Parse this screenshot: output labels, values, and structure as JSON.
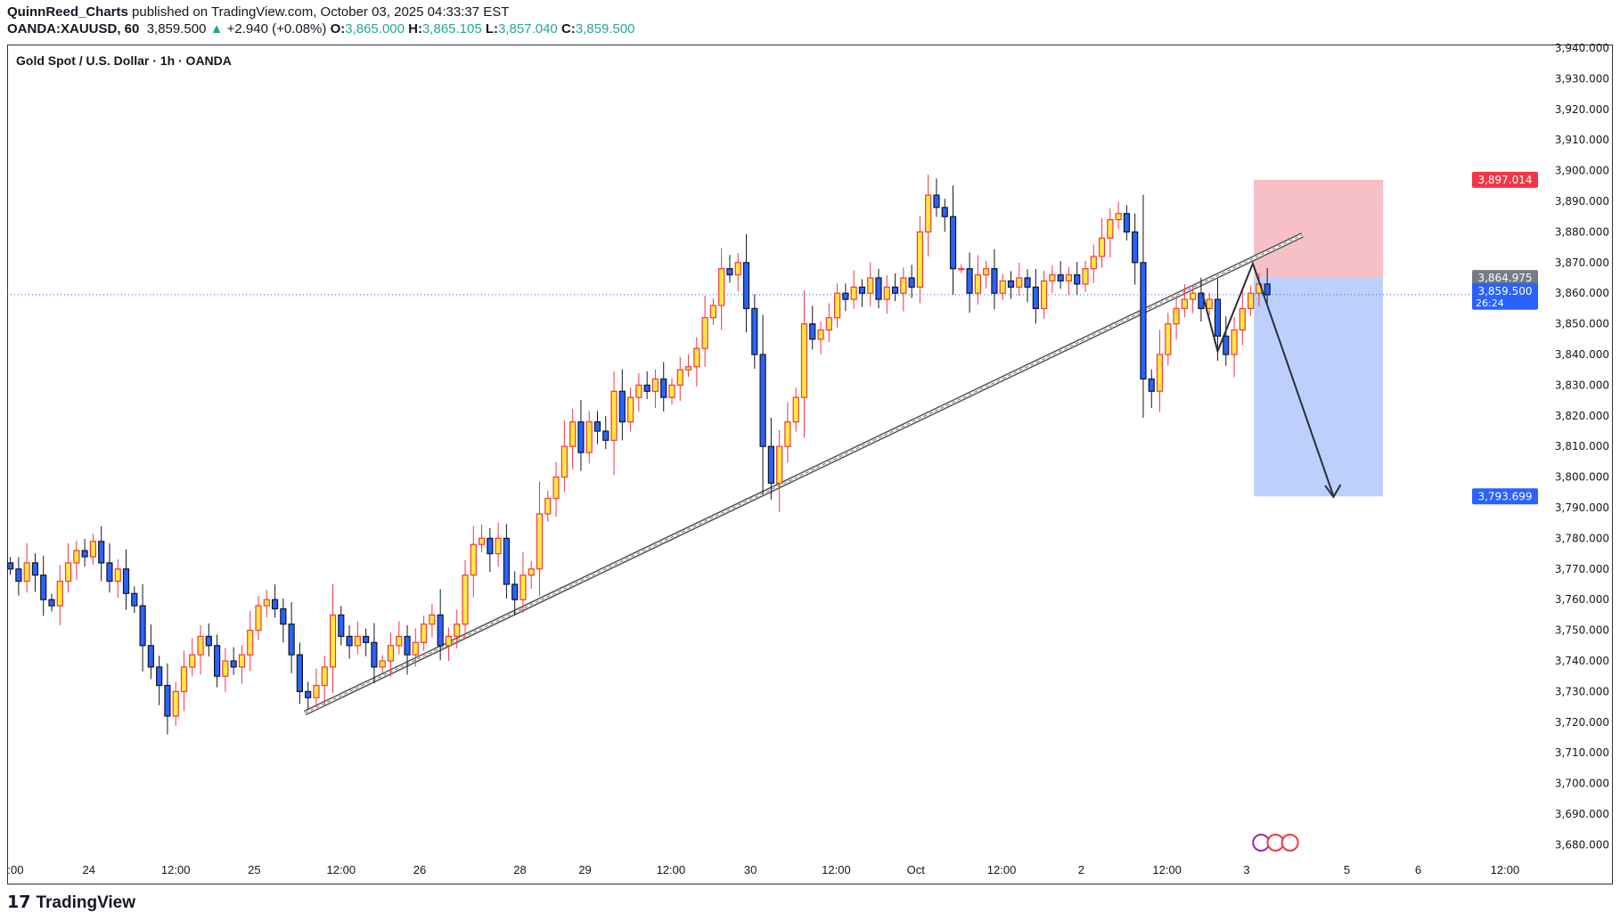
{
  "header": {
    "author": "QuinnReed_Charts",
    "published": "published on TradingView.com, October 03, 2025 04:33:37 EST",
    "symbol": "OANDA:XAUUSD, 60",
    "last": "3,859.500",
    "change": "+2.940 (+0.08%)",
    "o_label": "O:",
    "o": "3,865.000",
    "h_label": "H:",
    "h": "3,865.105",
    "l_label": "L:",
    "l": "3,857.040",
    "c_label": "C:",
    "c": "3,859.500"
  },
  "chart_title": "Gold Spot / U.S. Dollar · 1h · OANDA",
  "brand": "TradingView",
  "chart_data": {
    "type": "candlestick",
    "ylim": [
      3675,
      3945
    ],
    "y_ticks": [
      3940,
      3930,
      3920,
      3910,
      3900,
      3890,
      3880,
      3870,
      3860,
      3850,
      3840,
      3830,
      3820,
      3810,
      3800,
      3790,
      3780,
      3770,
      3760,
      3750,
      3740,
      3730,
      3720,
      3710,
      3700,
      3690,
      3680
    ],
    "x_tick_labels": [
      ":00",
      "24",
      "12:00",
      "25",
      "12:00",
      "26",
      "28",
      "29",
      "12:00",
      "30",
      "12:00",
      "Oct",
      "12:00",
      "2",
      "12:00",
      "3",
      "5",
      "6",
      "12:00"
    ],
    "close": [
      3770,
      3766,
      3772,
      3768,
      3760,
      3758,
      3766,
      3772,
      3776,
      3774,
      3779,
      3772,
      3766,
      3770,
      3762,
      3758,
      3745,
      3738,
      3732,
      3722,
      3730,
      3738,
      3742,
      3748,
      3745,
      3735,
      3740,
      3738,
      3742,
      3750,
      3758,
      3760,
      3757,
      3752,
      3742,
      3730,
      3728,
      3732,
      3738,
      3755,
      3748,
      3745,
      3748,
      3746,
      3738,
      3740,
      3745,
      3748,
      3742,
      3746,
      3752,
      3755,
      3745,
      3748,
      3752,
      3768,
      3778,
      3780,
      3775,
      3780,
      3765,
      3760,
      3768,
      3770,
      3788,
      3793,
      3800,
      3810,
      3818,
      3808,
      3818,
      3815,
      3812,
      3828,
      3818,
      3826,
      3830,
      3828,
      3832,
      3826,
      3830,
      3835,
      3836,
      3842,
      3852,
      3856,
      3868,
      3866,
      3870,
      3855,
      3840,
      3810,
      3798,
      3810,
      3818,
      3826,
      3850,
      3845,
      3848,
      3852,
      3860,
      3858,
      3862,
      3860,
      3865,
      3858,
      3862,
      3860,
      3865,
      3862,
      3880,
      3892,
      3888,
      3885,
      3868,
      3868,
      3860,
      3866,
      3868,
      3860,
      3864,
      3862,
      3865,
      3862,
      3855,
      3864,
      3866,
      3864,
      3866,
      3863,
      3868,
      3872,
      3878,
      3884,
      3886,
      3880,
      3870,
      3832,
      3828,
      3840,
      3850,
      3855,
      3858,
      3860,
      3855,
      3858,
      3846,
      3840,
      3848,
      3855,
      3860,
      3863,
      3859.5
    ],
    "current_price": 3859.5,
    "current_price_label": "3,859.500",
    "countdown": "26:24",
    "stop_label": "3,897.014",
    "stop": 3897.014,
    "entry_label": "3,864.975",
    "entry": 3864.975,
    "target_label": "3,793.699",
    "target": 3793.699,
    "colors": {
      "up_body": "#ffeb3b",
      "up_border": "#f23645",
      "down_body": "#2962ff",
      "down_border": "#131722",
      "stop_zone": "#f7c0c6",
      "target_zone": "#bdd0fb",
      "stop_tag": "#f23645",
      "entry_tag": "#787b86",
      "price_tag": "#2962ff"
    }
  }
}
